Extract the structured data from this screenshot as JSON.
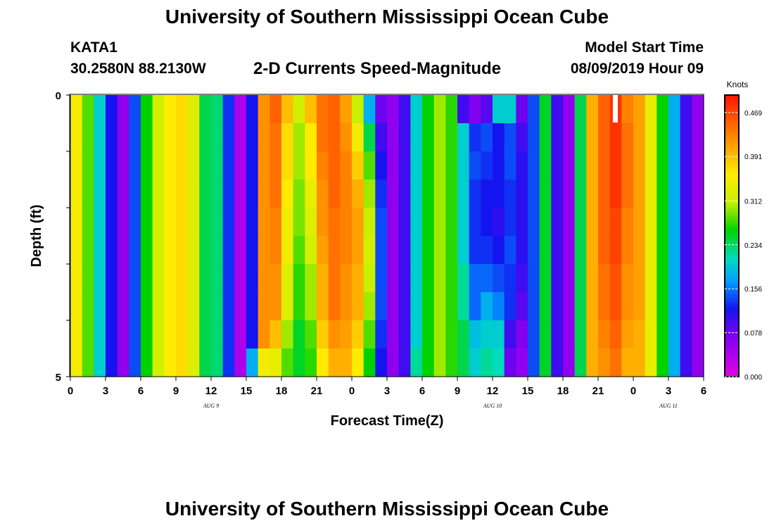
{
  "header": {
    "title": "University of Southern Mississippi Ocean Cube",
    "station_id": "KATA1",
    "station_coords": "30.2580N 88.2130W",
    "plot_title": "2-D Currents Speed-Magnitude",
    "model_label": "Model Start Time",
    "model_time": "08/09/2019 Hour 09"
  },
  "footer": {
    "title": "University of Southern Mississippi Ocean Cube"
  },
  "chart_data": {
    "type": "heatmap",
    "title": "2-D Currents Speed-Magnitude",
    "xlabel": "Forecast Time(Z)",
    "ylabel": "Depth (ft)",
    "x_start_hour": 0,
    "x_end_hour": 54,
    "ylim": [
      0,
      5
    ],
    "y_ticks": [
      "0",
      "5"
    ],
    "x_ticks": [
      {
        "hour": 0,
        "label": "0"
      },
      {
        "hour": 3,
        "label": "3"
      },
      {
        "hour": 6,
        "label": "6"
      },
      {
        "hour": 9,
        "label": "9"
      },
      {
        "hour": 12,
        "label": "12"
      },
      {
        "hour": 15,
        "label": "15"
      },
      {
        "hour": 18,
        "label": "18"
      },
      {
        "hour": 21,
        "label": "21"
      },
      {
        "hour": 24,
        "label": "0"
      },
      {
        "hour": 27,
        "label": "3"
      },
      {
        "hour": 30,
        "label": "6"
      },
      {
        "hour": 33,
        "label": "9"
      },
      {
        "hour": 36,
        "label": "12"
      },
      {
        "hour": 39,
        "label": "15"
      },
      {
        "hour": 42,
        "label": "18"
      },
      {
        "hour": 45,
        "label": "21"
      },
      {
        "hour": 48,
        "label": "0"
      },
      {
        "hour": 51,
        "label": "3"
      },
      {
        "hour": 54,
        "label": "6"
      }
    ],
    "date_labels": [
      {
        "hour": 12,
        "label": "AUG 9"
      },
      {
        "hour": 36,
        "label": "AUG 10"
      },
      {
        "hour": 51,
        "label": "AUG 11"
      }
    ],
    "colorbar": {
      "unit": "Knots",
      "min": 0.0,
      "max": 0.5,
      "tick_values": [
        0.469,
        0.391,
        0.312,
        0.234,
        0.156,
        0.078,
        0.0
      ],
      "tick_labels": [
        "0.469",
        "0.391",
        "0.312",
        "0.234",
        "0.156",
        "0.078",
        "0.000"
      ]
    },
    "rows_per_column": 10,
    "columns": [
      {
        "hour": 0,
        "values": [
          0.35,
          0.35,
          0.35,
          0.35,
          0.35,
          0.35,
          0.35,
          0.35,
          0.35,
          0.35
        ]
      },
      {
        "hour": 1,
        "values": [
          0.28,
          0.28,
          0.28,
          0.28,
          0.28,
          0.28,
          0.28,
          0.28,
          0.28,
          0.28
        ]
      },
      {
        "hour": 2,
        "values": [
          0.2,
          0.2,
          0.2,
          0.2,
          0.2,
          0.2,
          0.2,
          0.2,
          0.2,
          0.2
        ]
      },
      {
        "hour": 3,
        "values": [
          0.12,
          0.12,
          0.12,
          0.12,
          0.12,
          0.12,
          0.12,
          0.12,
          0.12,
          0.12
        ]
      },
      {
        "hour": 4,
        "values": [
          0.06,
          0.06,
          0.06,
          0.06,
          0.06,
          0.06,
          0.06,
          0.06,
          0.06,
          0.06
        ]
      },
      {
        "hour": 5,
        "values": [
          0.14,
          0.14,
          0.14,
          0.14,
          0.14,
          0.14,
          0.14,
          0.14,
          0.14,
          0.14
        ]
      },
      {
        "hour": 6,
        "values": [
          0.26,
          0.26,
          0.26,
          0.26,
          0.26,
          0.26,
          0.26,
          0.26,
          0.26,
          0.26
        ]
      },
      {
        "hour": 7,
        "values": [
          0.32,
          0.32,
          0.32,
          0.32,
          0.32,
          0.32,
          0.32,
          0.32,
          0.32,
          0.32
        ]
      },
      {
        "hour": 8,
        "values": [
          0.36,
          0.36,
          0.36,
          0.36,
          0.36,
          0.36,
          0.36,
          0.36,
          0.36,
          0.36
        ]
      },
      {
        "hour": 9,
        "values": [
          0.37,
          0.37,
          0.37,
          0.37,
          0.37,
          0.37,
          0.37,
          0.37,
          0.37,
          0.37
        ]
      },
      {
        "hour": 10,
        "values": [
          0.33,
          0.33,
          0.33,
          0.33,
          0.33,
          0.33,
          0.33,
          0.33,
          0.33,
          0.33
        ]
      },
      {
        "hour": 11,
        "values": [
          0.24,
          0.24,
          0.24,
          0.24,
          0.24,
          0.24,
          0.24,
          0.24,
          0.24,
          0.24
        ]
      },
      {
        "hour": 12,
        "values": [
          0.23,
          0.23,
          0.23,
          0.23,
          0.23,
          0.23,
          0.23,
          0.23,
          0.23,
          0.23
        ]
      },
      {
        "hour": 13,
        "values": [
          0.13,
          0.13,
          0.13,
          0.13,
          0.13,
          0.13,
          0.13,
          0.13,
          0.13,
          0.13
        ]
      },
      {
        "hour": 14,
        "values": [
          0.04,
          0.04,
          0.04,
          0.04,
          0.04,
          0.04,
          0.04,
          0.04,
          0.04,
          0.04
        ]
      },
      {
        "hour": 15,
        "values": [
          0.12,
          0.12,
          0.12,
          0.12,
          0.12,
          0.12,
          0.12,
          0.12,
          0.12,
          0.18
        ]
      },
      {
        "hour": 16,
        "values": [
          0.42,
          0.42,
          0.42,
          0.42,
          0.42,
          0.42,
          0.42,
          0.42,
          0.42,
          0.35
        ]
      },
      {
        "hour": 17,
        "values": [
          0.45,
          0.44,
          0.44,
          0.44,
          0.43,
          0.43,
          0.42,
          0.42,
          0.39,
          0.34
        ]
      },
      {
        "hour": 18,
        "values": [
          0.39,
          0.37,
          0.37,
          0.36,
          0.35,
          0.35,
          0.33,
          0.33,
          0.3,
          0.28
        ]
      },
      {
        "hour": 19,
        "values": [
          0.32,
          0.3,
          0.3,
          0.29,
          0.29,
          0.28,
          0.27,
          0.27,
          0.25,
          0.25
        ]
      },
      {
        "hour": 20,
        "values": [
          0.39,
          0.36,
          0.36,
          0.34,
          0.33,
          0.32,
          0.3,
          0.3,
          0.28,
          0.27
        ]
      },
      {
        "hour": 21,
        "values": [
          0.44,
          0.44,
          0.43,
          0.42,
          0.42,
          0.41,
          0.4,
          0.4,
          0.38,
          0.36
        ]
      },
      {
        "hour": 22,
        "values": [
          0.45,
          0.45,
          0.45,
          0.45,
          0.44,
          0.44,
          0.44,
          0.44,
          0.42,
          0.4
        ]
      },
      {
        "hour": 23,
        "values": [
          0.41,
          0.42,
          0.43,
          0.43,
          0.43,
          0.43,
          0.42,
          0.42,
          0.41,
          0.4
        ]
      },
      {
        "hour": 24,
        "values": [
          0.31,
          0.35,
          0.38,
          0.4,
          0.41,
          0.41,
          0.4,
          0.4,
          0.38,
          0.36
        ]
      },
      {
        "hour": 25,
        "values": [
          0.18,
          0.24,
          0.28,
          0.3,
          0.31,
          0.32,
          0.31,
          0.3,
          0.28,
          0.26
        ]
      },
      {
        "hour": 26,
        "values": [
          0.08,
          0.1,
          0.12,
          0.13,
          0.14,
          0.14,
          0.14,
          0.14,
          0.13,
          0.12
        ]
      },
      {
        "hour": 27,
        "values": [
          0.06,
          0.06,
          0.06,
          0.06,
          0.06,
          0.06,
          0.06,
          0.06,
          0.06,
          0.06
        ]
      },
      {
        "hour": 28,
        "values": [
          0.1,
          0.1,
          0.1,
          0.1,
          0.1,
          0.1,
          0.1,
          0.1,
          0.1,
          0.1
        ]
      },
      {
        "hour": 29,
        "values": [
          0.2,
          0.2,
          0.2,
          0.2,
          0.2,
          0.2,
          0.2,
          0.2,
          0.2,
          0.22
        ]
      },
      {
        "hour": 30,
        "values": [
          0.26,
          0.26,
          0.26,
          0.26,
          0.26,
          0.26,
          0.26,
          0.26,
          0.26,
          0.26
        ]
      },
      {
        "hour": 31,
        "values": [
          0.3,
          0.3,
          0.3,
          0.3,
          0.3,
          0.3,
          0.3,
          0.3,
          0.3,
          0.3
        ]
      },
      {
        "hour": 32,
        "values": [
          0.27,
          0.27,
          0.27,
          0.27,
          0.27,
          0.27,
          0.27,
          0.27,
          0.27,
          0.27
        ]
      },
      {
        "hour": 33,
        "values": [
          0.1,
          0.2,
          0.2,
          0.2,
          0.2,
          0.2,
          0.22,
          0.22,
          0.24,
          0.24
        ]
      },
      {
        "hour": 34,
        "values": [
          0.07,
          0.13,
          0.14,
          0.13,
          0.13,
          0.13,
          0.15,
          0.15,
          0.19,
          0.2
        ]
      },
      {
        "hour": 35,
        "values": [
          0.09,
          0.14,
          0.13,
          0.12,
          0.12,
          0.13,
          0.15,
          0.18,
          0.2,
          0.22
        ]
      },
      {
        "hour": 36,
        "values": [
          0.2,
          0.12,
          0.12,
          0.12,
          0.11,
          0.12,
          0.14,
          0.16,
          0.2,
          0.21
        ]
      },
      {
        "hour": 37,
        "values": [
          0.2,
          0.14,
          0.14,
          0.13,
          0.13,
          0.14,
          0.13,
          0.13,
          0.1,
          0.08
        ]
      },
      {
        "hour": 38,
        "values": [
          0.08,
          0.1,
          0.11,
          0.11,
          0.11,
          0.11,
          0.1,
          0.09,
          0.07,
          0.06
        ]
      },
      {
        "hour": 39,
        "values": [
          0.14,
          0.14,
          0.14,
          0.14,
          0.14,
          0.14,
          0.14,
          0.14,
          0.14,
          0.14
        ]
      },
      {
        "hour": 40,
        "values": [
          0.25,
          0.25,
          0.25,
          0.25,
          0.25,
          0.25,
          0.25,
          0.25,
          0.25,
          0.25
        ]
      },
      {
        "hour": 41,
        "values": [
          0.1,
          0.1,
          0.1,
          0.1,
          0.1,
          0.1,
          0.1,
          0.1,
          0.1,
          0.1
        ]
      },
      {
        "hour": 42,
        "values": [
          0.06,
          0.06,
          0.06,
          0.06,
          0.06,
          0.06,
          0.06,
          0.06,
          0.06,
          0.06
        ]
      },
      {
        "hour": 43,
        "values": [
          0.24,
          0.24,
          0.24,
          0.24,
          0.24,
          0.24,
          0.24,
          0.24,
          0.24,
          0.24
        ]
      },
      {
        "hour": 44,
        "values": [
          0.4,
          0.4,
          0.4,
          0.4,
          0.4,
          0.4,
          0.4,
          0.4,
          0.4,
          0.4
        ]
      },
      {
        "hour": 45,
        "values": [
          0.45,
          0.45,
          0.45,
          0.45,
          0.45,
          0.45,
          0.44,
          0.44,
          0.43,
          0.42
        ]
      },
      {
        "hour": 46,
        "values": [
          0.48,
          0.48,
          0.48,
          0.48,
          0.47,
          0.47,
          0.46,
          0.46,
          0.45,
          0.44
        ]
      },
      {
        "hour": 47,
        "values": [
          0.43,
          0.44,
          0.44,
          0.44,
          0.43,
          0.43,
          0.42,
          0.42,
          0.41,
          0.4
        ]
      },
      {
        "hour": 48,
        "values": [
          0.41,
          0.41,
          0.41,
          0.41,
          0.41,
          0.41,
          0.41,
          0.41,
          0.4,
          0.4
        ]
      },
      {
        "hour": 49,
        "values": [
          0.34,
          0.34,
          0.34,
          0.34,
          0.34,
          0.34,
          0.34,
          0.34,
          0.34,
          0.34
        ]
      },
      {
        "hour": 50,
        "values": [
          0.26,
          0.26,
          0.26,
          0.26,
          0.26,
          0.26,
          0.26,
          0.26,
          0.26,
          0.26
        ]
      },
      {
        "hour": 51,
        "values": [
          0.18,
          0.18,
          0.18,
          0.18,
          0.18,
          0.18,
          0.18,
          0.18,
          0.18,
          0.18
        ]
      },
      {
        "hour": 52,
        "values": [
          0.1,
          0.1,
          0.1,
          0.1,
          0.1,
          0.1,
          0.1,
          0.1,
          0.1,
          0.1
        ]
      },
      {
        "hour": 53,
        "values": [
          0.06,
          0.06,
          0.06,
          0.06,
          0.06,
          0.06,
          0.06,
          0.06,
          0.06,
          0.06
        ]
      }
    ]
  },
  "colors": {
    "background": "#ffffff",
    "text": "#000000",
    "missing_marker": "#ffffff"
  }
}
